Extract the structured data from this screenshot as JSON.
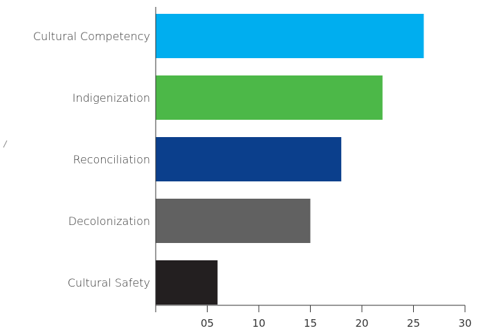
{
  "chart_data": {
    "type": "bar",
    "orientation": "horizontal",
    "title": "",
    "xlabel": "",
    "ylabel": "",
    "categories": [
      "Cultural Competency",
      "Indigenization",
      "Reconciliation",
      "Decolonization",
      "Cultural Safety"
    ],
    "values": [
      26,
      22,
      18,
      15,
      6
    ],
    "colors": [
      "#00AEEF",
      "#4CB848",
      "#0B3F8C",
      "#616161",
      "#231F20"
    ],
    "xlim": [
      0,
      30
    ],
    "xticks": [
      5,
      10,
      15,
      20,
      25,
      30
    ],
    "xtick_labels": [
      "05",
      "10",
      "15",
      "20",
      "25",
      "30"
    ],
    "grid": false,
    "legend": "none"
  }
}
